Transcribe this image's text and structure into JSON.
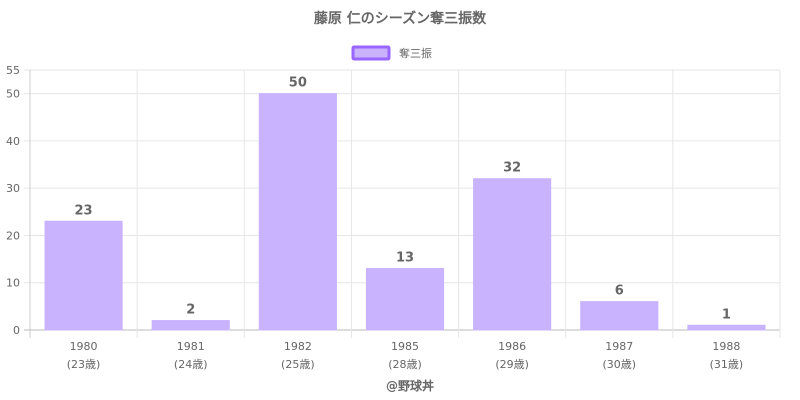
{
  "chart_data": {
    "type": "bar",
    "title": "藤原 仁のシーズン奪三振数",
    "series": [
      {
        "name": "奪三振",
        "values": [
          23,
          2,
          50,
          13,
          32,
          6,
          1
        ]
      }
    ],
    "categories": [
      "1980",
      "1981",
      "1982",
      "1985",
      "1986",
      "1987",
      "1988"
    ],
    "sublabels": [
      "(23歳)",
      "(24歳)",
      "(25歳)",
      "(28歳)",
      "(29歳)",
      "(30歳)",
      "(31歳)"
    ],
    "yticks": [
      0,
      10,
      20,
      30,
      40,
      50,
      55
    ],
    "ylim": [
      0,
      55
    ],
    "grid": true,
    "legend_position": "top",
    "bar_color": "#c9b3ff",
    "legend_border_color": "#9966ff",
    "source": "@野球丼"
  }
}
